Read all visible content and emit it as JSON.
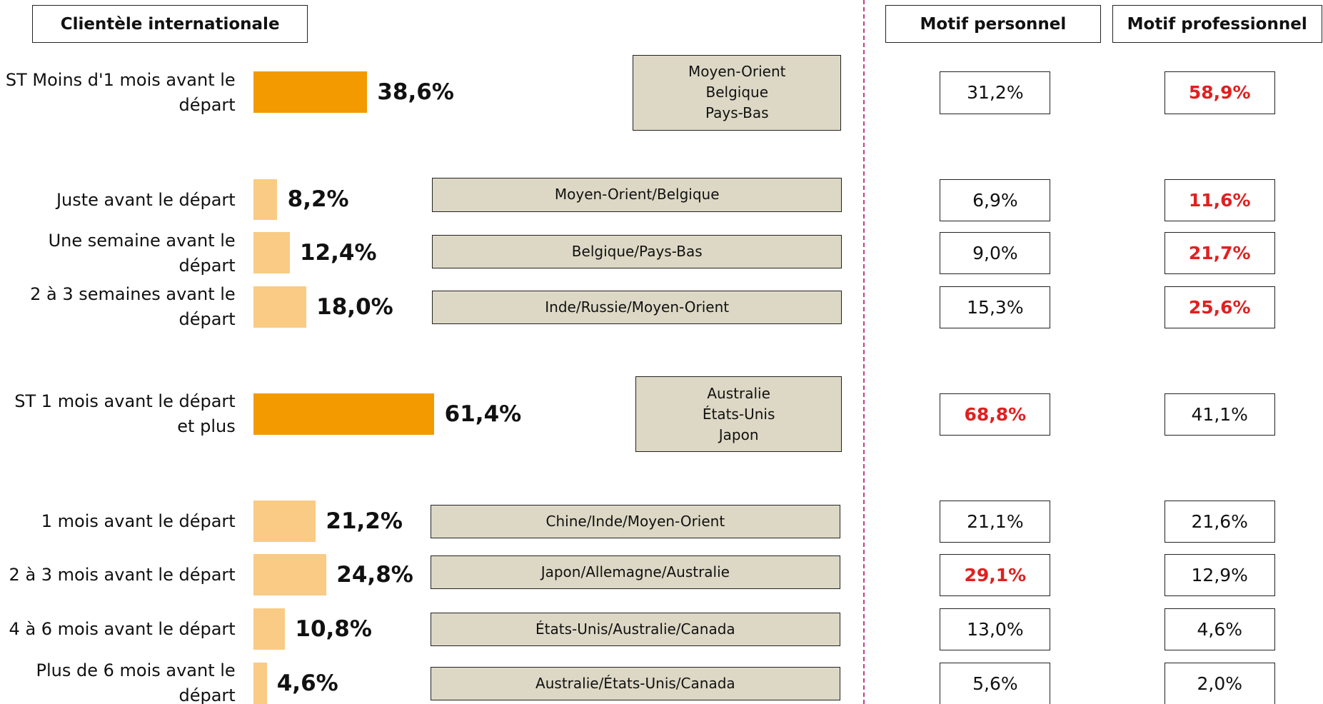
{
  "chart_data": {
    "type": "bar",
    "title": "Clientèle internationale",
    "column_headers": [
      "Motif personnel",
      "Motif professionnel"
    ],
    "categories": [
      [
        "ST Moins d'1 mois avant le",
        "départ"
      ],
      [
        "Juste avant le départ"
      ],
      [
        "Une semaine avant le",
        "départ"
      ],
      [
        "2 à 3 semaines avant le",
        "départ"
      ],
      [
        "ST 1 mois avant le départ",
        "et plus"
      ],
      [
        "1 mois avant le départ"
      ],
      [
        "2 à 3 mois avant le départ"
      ],
      [
        "4 à 6 mois avant le départ"
      ],
      [
        "Plus de 6 mois avant le",
        "départ"
      ]
    ],
    "values": [
      38.6,
      8.2,
      12.4,
      18.0,
      61.4,
      21.2,
      24.8,
      10.8,
      4.6
    ],
    "value_labels": [
      "38,6%",
      "8,2%",
      "12,4%",
      "18,0%",
      "61,4%",
      "21,2%",
      "24,8%",
      "10,8%",
      "4,6%"
    ],
    "colors": [
      "#f39a00",
      "#f9cb85",
      "#f9cb85",
      "#f9cb85",
      "#f39a00",
      "#f9cb85",
      "#f9cb85",
      "#f9cb85",
      "#f9cb85"
    ],
    "countries": [
      [
        "Moyen-Orient",
        "Belgique",
        "Pays-Bas"
      ],
      [
        "Moyen-Orient/Belgique"
      ],
      [
        "Belgique/Pays-Bas"
      ],
      [
        "Inde/Russie/Moyen-Orient"
      ],
      [
        "Australie",
        "États-Unis",
        "Japon"
      ],
      [
        "Chine/Inde/Moyen-Orient"
      ],
      [
        "Japon/Allemagne/Australie"
      ],
      [
        "États-Unis/Australie/Canada"
      ],
      [
        "Australie/États-Unis/Canada"
      ]
    ],
    "highlight_color": "#e02020",
    "personal": {
      "values": [
        31.2,
        6.9,
        9.0,
        15.3,
        68.8,
        21.1,
        29.1,
        13.0,
        5.6
      ],
      "value_labels": [
        "31,2%",
        "6,9%",
        "9,0%",
        "15,3%",
        "68,8%",
        "21,1%",
        "29,1%",
        "13,0%",
        "5,6%"
      ],
      "highlighted": [
        false,
        false,
        false,
        false,
        true,
        false,
        true,
        false,
        false
      ]
    },
    "professional": {
      "values": [
        58.9,
        11.6,
        21.7,
        25.6,
        41.1,
        21.6,
        12.9,
        4.6,
        2.0
      ],
      "value_labels": [
        "58,9%",
        "11,6%",
        "21,7%",
        "25,6%",
        "41,1%",
        "21,6%",
        "12,9%",
        "4,6%",
        "2,0%"
      ],
      "highlighted": [
        true,
        true,
        true,
        true,
        false,
        false,
        false,
        false,
        false
      ]
    }
  }
}
